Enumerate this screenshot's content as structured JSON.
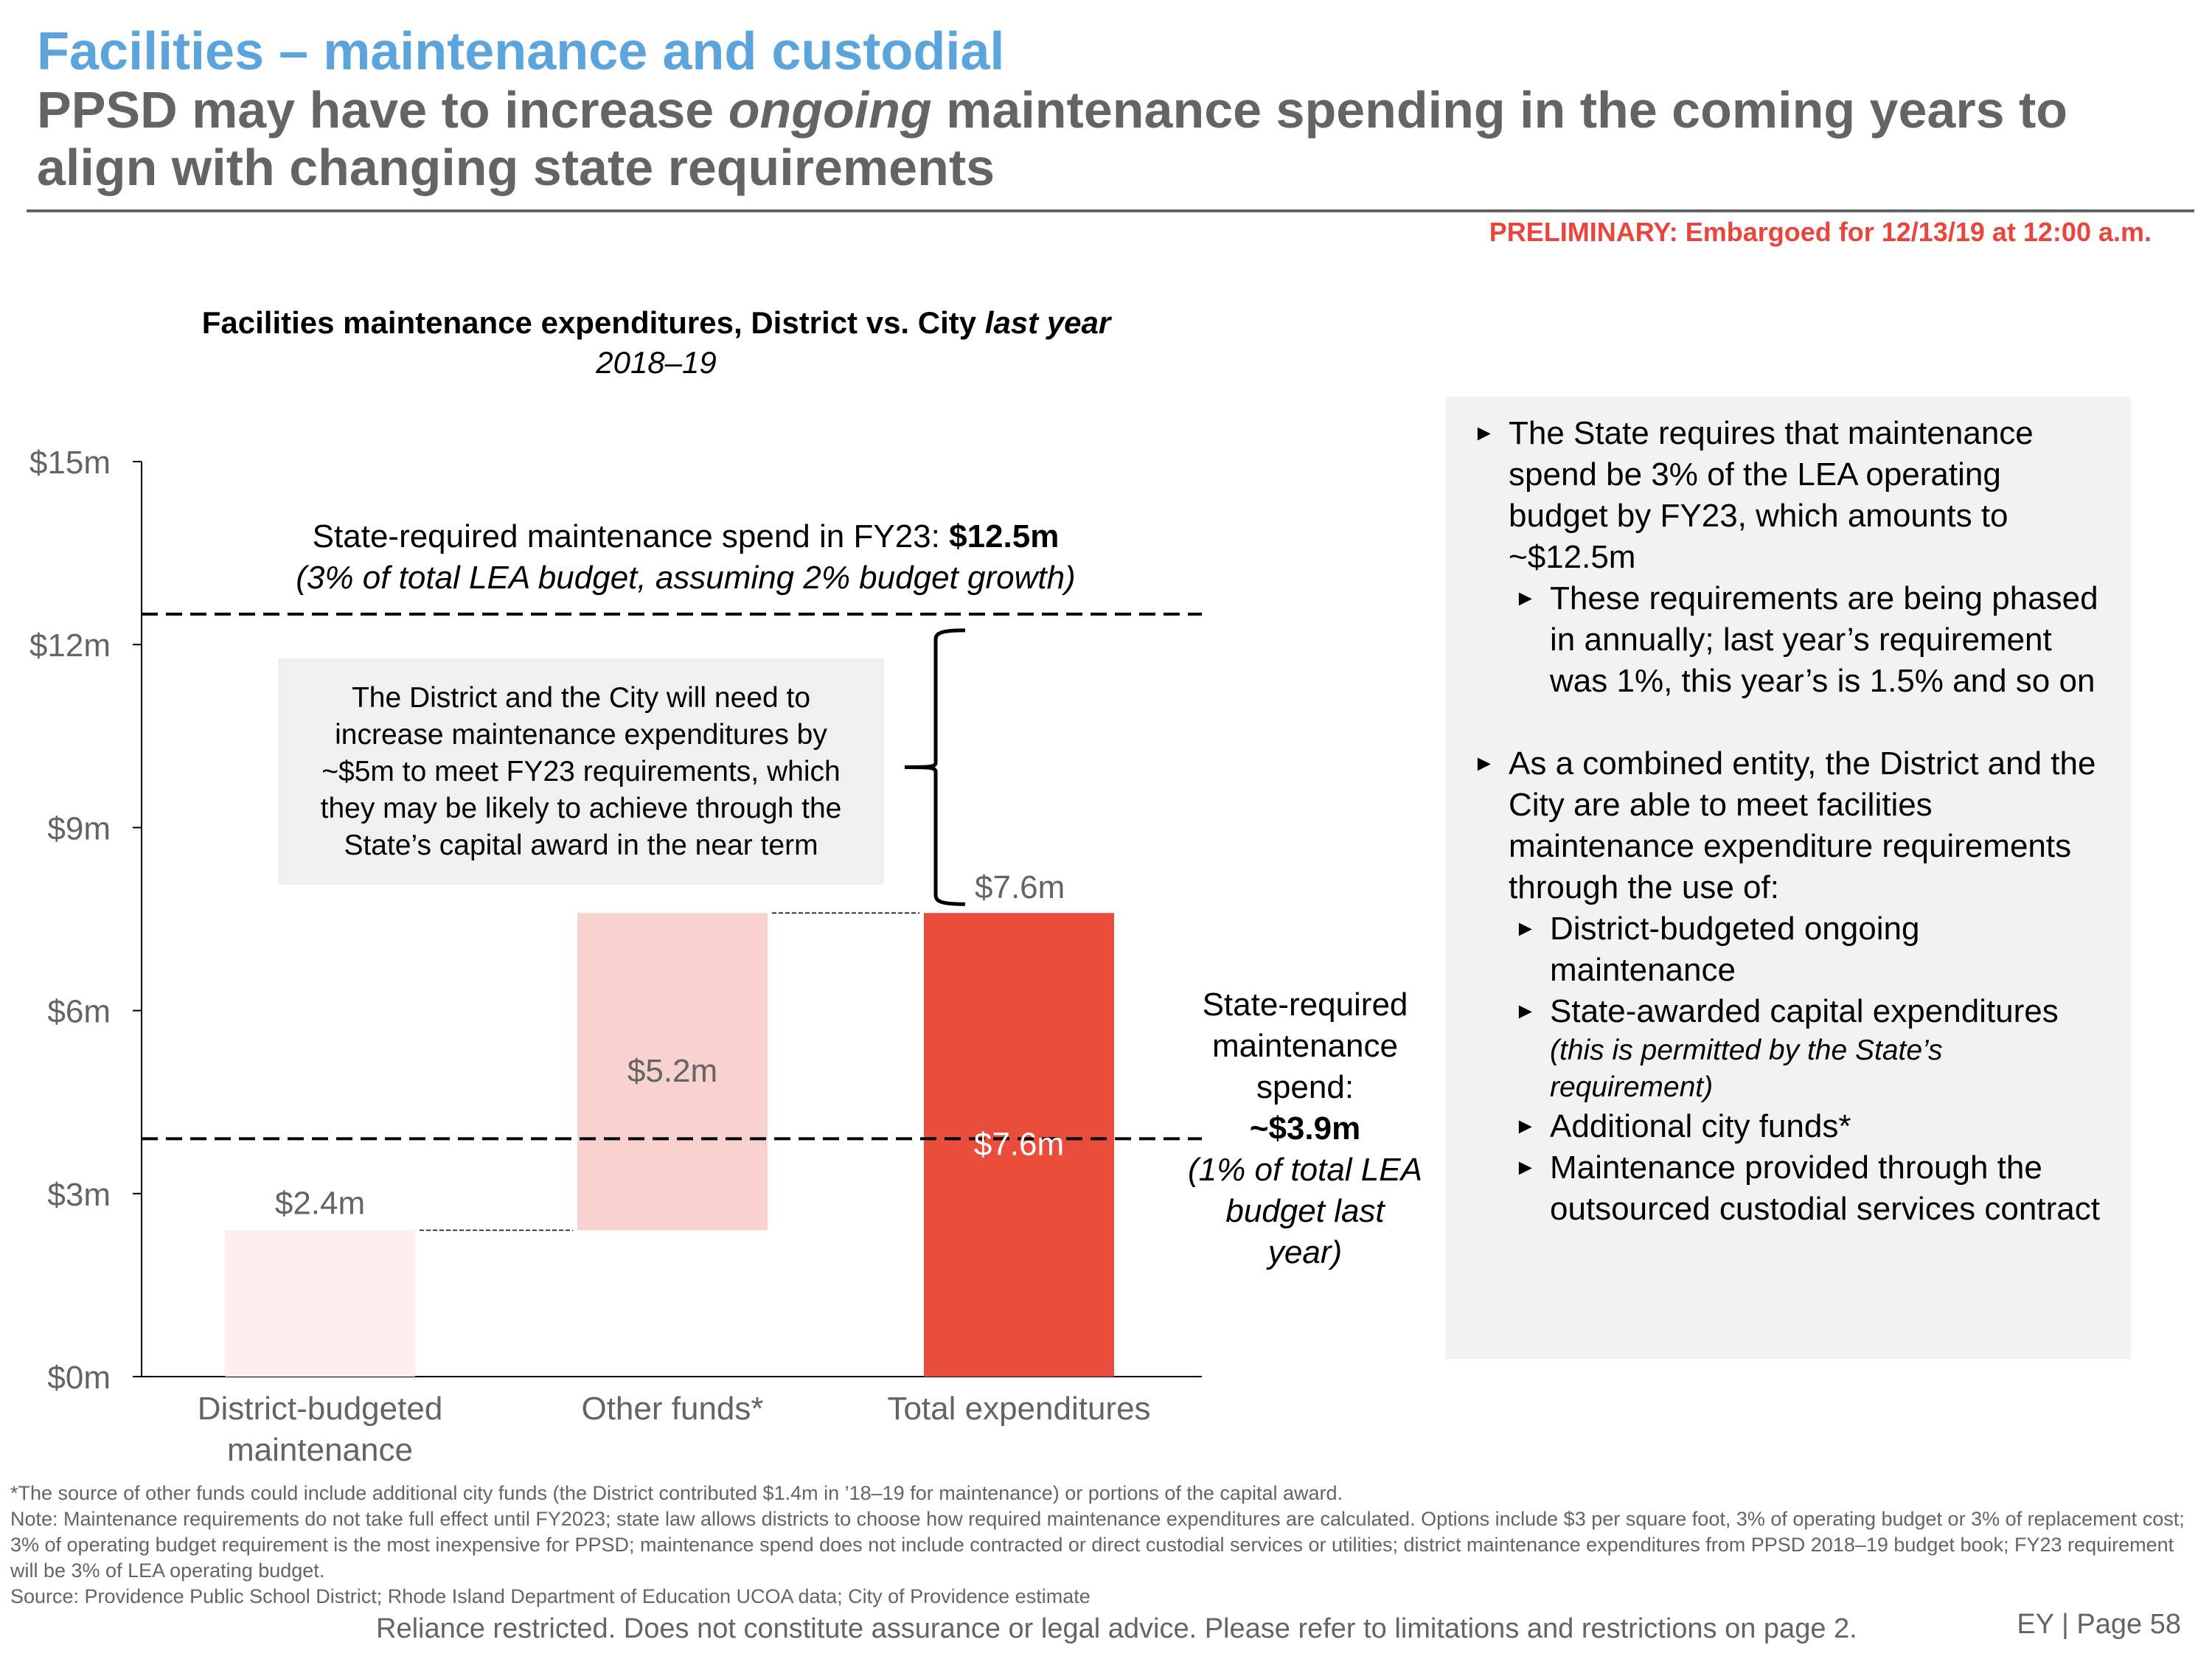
{
  "header": {
    "section_title": "Facilities – maintenance and custodial",
    "headline_part1": "PPSD may have to increase ",
    "headline_emphasis": "ongoing",
    "headline_part2": " maintenance spending in the coming years to align with changing state requirements",
    "preliminary_notice": "PRELIMINARY: Embargoed for 12/13/19 at 12:00 a.m."
  },
  "colors": {
    "section_title": "#5ba4dc",
    "headline": "#646464",
    "preliminary": "#e8453c",
    "bar_district": "#fbeeeb",
    "bar_other": "#f7d2cf",
    "bar_total": "#e94e3d",
    "panel_bg": "#f2f2f2",
    "callout_bg": "#f0f0f0"
  },
  "chart_data": {
    "type": "bar",
    "subtype": "waterfall",
    "title": "Facilities maintenance expenditures, District vs. City",
    "title_emphasis": "last year",
    "subtitle": "2018–19",
    "xlabel": "",
    "ylabel": "",
    "ylim": [
      0,
      15
    ],
    "unit": "$m",
    "yticks": [
      0,
      3,
      6,
      9,
      12,
      15
    ],
    "ytick_labels": [
      "$0m",
      "$3m",
      "$6m",
      "$9m",
      "$12m",
      "$15m"
    ],
    "grid": false,
    "categories": [
      "District-budgeted maintenance",
      "Other funds*",
      "Total expenditures"
    ],
    "bars": [
      {
        "category": "District-budgeted maintenance",
        "base": 0,
        "value": 2.4,
        "label": "$2.4m",
        "color_key": "bar_district"
      },
      {
        "category": "Other funds*",
        "base": 2.4,
        "value": 5.2,
        "label": "$5.2m",
        "color_key": "bar_other"
      },
      {
        "category": "Total expenditures",
        "base": 0,
        "value": 7.6,
        "label": "$7.6m",
        "color_key": "bar_total"
      }
    ],
    "reference_lines": [
      {
        "name": "FY23 state requirement",
        "value": 12.5,
        "style": "dashed"
      },
      {
        "name": "Last year state requirement",
        "value": 3.9,
        "style": "dashed"
      }
    ],
    "gap_bracket": {
      "from": 7.6,
      "to": 12.5,
      "above_label": "$7.6m"
    },
    "annotations": {
      "fy23_line1": "State-required maintenance spend in FY23: ",
      "fy23_value": "$12.5m",
      "fy23_line2": "(3% of total LEA budget, assuming 2% budget growth)",
      "callout": "The District and the City will need to increase maintenance expenditures by ~$5m to meet FY23 requirements, which they may be likely to achieve through the State’s capital award in the near term",
      "last_year_label": "State-required maintenance spend:",
      "last_year_value": "~$3.9m",
      "last_year_note": "(1% of total LEA budget last year)"
    }
  },
  "side_panel": {
    "bullets": [
      {
        "level": 1,
        "text": "The State requires that maintenance spend be 3% of the LEA operating budget by FY23, which amounts to ~$12.5m"
      },
      {
        "level": 2,
        "text": "These requirements are being phased in annually; last year’s requirement was 1%, this year’s is 1.5% and so on"
      },
      {
        "level": 1,
        "text": "As a combined entity, the District and the City are able to meet facilities maintenance expenditure requirements through the use of:"
      },
      {
        "level": 2,
        "text": "District-budgeted ongoing maintenance"
      },
      {
        "level": 2,
        "text": "State-awarded capital expenditures",
        "note": "(this is permitted by the State’s requirement)"
      },
      {
        "level": 2,
        "text": "Additional city funds*"
      },
      {
        "level": 2,
        "text": "Maintenance provided through the outsourced custodial services contract"
      }
    ]
  },
  "footer": {
    "footnote_other_funds": "*The source of other funds could include additional city funds (the District contributed $1.4m in ’18–19 for maintenance) or portions of the capital award.",
    "note": "Note: Maintenance requirements do not take full effect until FY2023; state law allows districts to choose how required maintenance expenditures are calculated. Options include $3 per square foot, 3% of operating budget or 3% of replacement cost; 3% of operating budget requirement is the most inexpensive for PPSD; maintenance spend does not include contracted or direct custodial services or utilities; district maintenance expenditures from PPSD 2018–19 budget book; FY23 requirement will be 3% of LEA operating budget.",
    "source": "Source: Providence Public School District; Rhode Island Department of Education UCOA data; City of Providence estimate",
    "disclaimer": "Reliance restricted. Does not constitute assurance or legal advice. Please refer to limitations and restrictions on page 2.",
    "page_label": "EY | Page 58"
  }
}
